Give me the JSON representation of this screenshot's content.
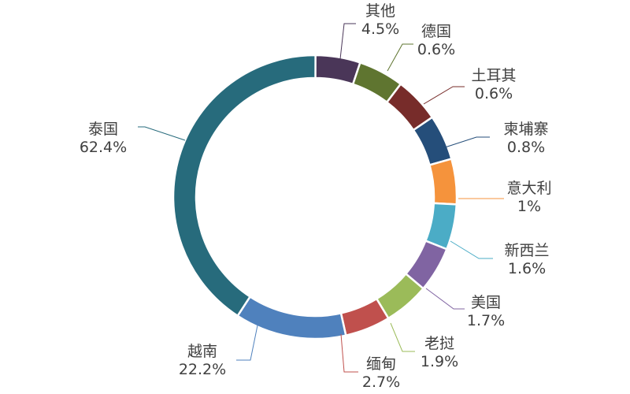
{
  "chart_data": {
    "type": "pie",
    "donut": true,
    "title": "",
    "legend": "none",
    "display_order": [
      "其他",
      "德国",
      "土耳其",
      "柬埔寨",
      "意大利",
      "新西兰",
      "美国",
      "老挝",
      "缅甸",
      "越南",
      "泰国"
    ],
    "slices": [
      {
        "label": "其他",
        "value": 4.5,
        "value_label": "4.5%",
        "color": "#4a3658"
      },
      {
        "label": "德国",
        "value": 0.6,
        "value_label": "0.6%",
        "color": "#5f7530"
      },
      {
        "label": "土耳其",
        "value": 0.6,
        "value_label": "0.6%",
        "color": "#772c2a"
      },
      {
        "label": "柬埔寨",
        "value": 0.8,
        "value_label": "0.8%",
        "color": "#254e7a"
      },
      {
        "label": "意大利",
        "value": 1,
        "value_label": "1%",
        "color": "#f5933c"
      },
      {
        "label": "新西兰",
        "value": 1.6,
        "value_label": "1.6%",
        "color": "#4bacc6"
      },
      {
        "label": "美国",
        "value": 1.7,
        "value_label": "1.7%",
        "color": "#8064a2"
      },
      {
        "label": "老挝",
        "value": 1.9,
        "value_label": "1.9%",
        "color": "#9bbb59"
      },
      {
        "label": "缅甸",
        "value": 2.7,
        "value_label": "2.7%",
        "color": "#c0504d"
      },
      {
        "label": "越南",
        "value": 22.2,
        "value_label": "22.2%",
        "color": "#4f81bd"
      },
      {
        "label": "泰国",
        "value": 62.4,
        "value_label": "62.4%",
        "color": "#276b7c"
      }
    ]
  }
}
